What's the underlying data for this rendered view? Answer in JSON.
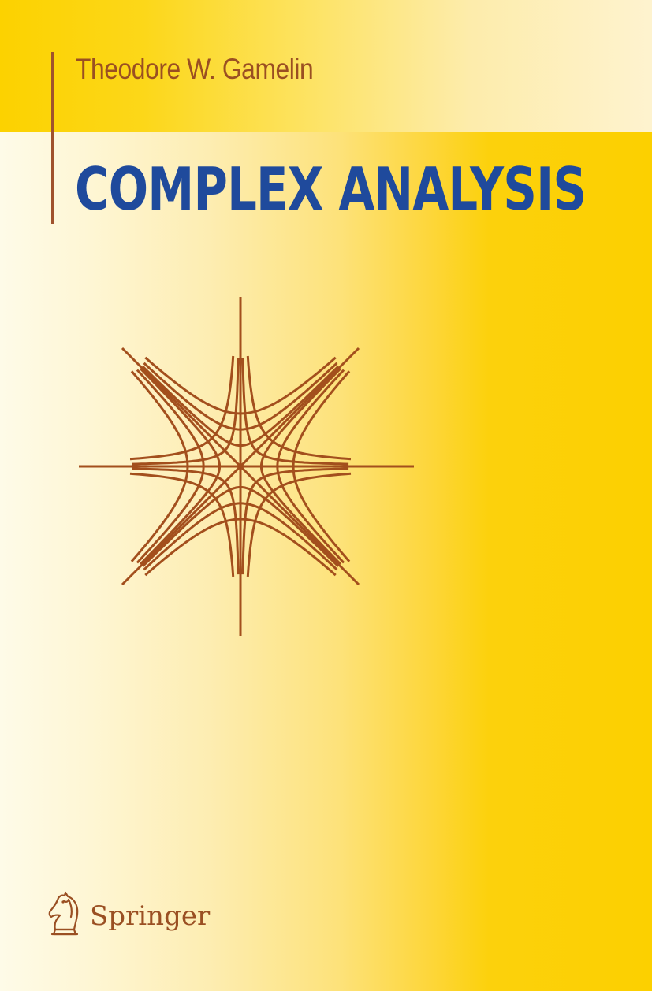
{
  "book": {
    "author": "Theodore W. Gamelin",
    "title": "COMPLEX ANALYSIS",
    "publisher": "Springer"
  },
  "icons": {
    "cover_art": "hyperbola-grid-figure",
    "publisher_logo": "chess-knight-icon"
  },
  "colors": {
    "yellow": "#fcd000",
    "cream": "#fefbe8",
    "brown": "#9a4f22",
    "title_blue": "#1f4a9c"
  }
}
